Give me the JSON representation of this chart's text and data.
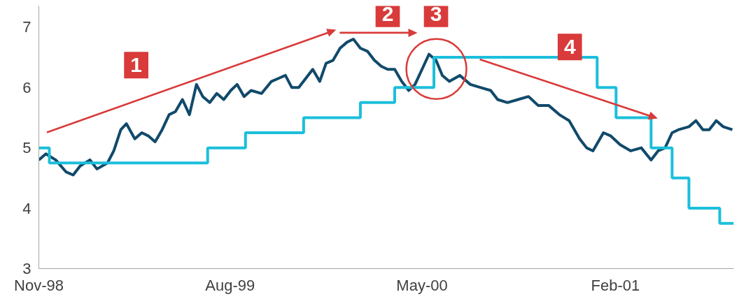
{
  "chart_data": {
    "type": "line",
    "xlim": [
      "1998-11-01",
      "2001-07-20"
    ],
    "ylim": [
      3,
      7.35
    ],
    "yticks": [
      3,
      4,
      5,
      6,
      7
    ],
    "xticks": [
      {
        "value": "1998-11-01",
        "label": "Nov-98"
      },
      {
        "value": "1999-08-01",
        "label": "Aug-99"
      },
      {
        "value": "2000-05-01",
        "label": "May-00"
      },
      {
        "value": "2001-02-01",
        "label": "Feb-01"
      }
    ],
    "grid": false,
    "line_style": "solid",
    "marker": "none",
    "series": [
      {
        "color": "#114a6b",
        "x": [
          "1998-11-01",
          "1998-11-11",
          "1998-11-25",
          "1998-12-10",
          "1998-12-20",
          "1998-12-30",
          "1999-01-13",
          "1999-01-23",
          "1999-02-07",
          "1999-02-16",
          "1999-02-26",
          "1999-03-06",
          "1999-03-18",
          "1999-03-28",
          "1999-04-06",
          "1999-04-16",
          "1999-04-26",
          "1999-05-06",
          "1999-05-15",
          "1999-05-25",
          "1999-06-04",
          "1999-06-14",
          "1999-06-23",
          "1999-07-03",
          "1999-07-13",
          "1999-07-23",
          "1999-08-02",
          "1999-08-11",
          "1999-08-21",
          "1999-08-31",
          "1999-09-15",
          "1999-09-29",
          "1999-10-09",
          "1999-10-19",
          "1999-10-28",
          "1999-11-07",
          "1999-11-17",
          "1999-11-27",
          "1999-12-07",
          "1999-12-16",
          "1999-12-26",
          "2000-01-05",
          "2000-01-15",
          "2000-01-24",
          "2000-02-03",
          "2000-02-13",
          "2000-02-23",
          "2000-03-04",
          "2000-03-13",
          "2000-03-23",
          "2000-04-02",
          "2000-04-12",
          "2000-04-21",
          "2000-05-01",
          "2000-05-11",
          "2000-05-21",
          "2000-05-30",
          "2000-06-09",
          "2000-06-24",
          "2000-07-09",
          "2000-07-23",
          "2000-08-07",
          "2000-08-17",
          "2000-08-31",
          "2000-09-15",
          "2000-09-30",
          "2000-10-14",
          "2000-10-29",
          "2000-11-13",
          "2000-11-27",
          "2000-12-12",
          "2000-12-22",
          "2000-12-31",
          "2001-01-15",
          "2001-01-25",
          "2001-02-08",
          "2001-02-23",
          "2001-03-10",
          "2001-03-24",
          "2001-04-03",
          "2001-04-13",
          "2001-04-23",
          "2001-05-02",
          "2001-05-17",
          "2001-05-27",
          "2001-06-06",
          "2001-06-15",
          "2001-06-25",
          "2001-07-05",
          "2001-07-18"
        ],
        "values": [
          4.8,
          4.9,
          4.8,
          4.6,
          4.55,
          4.7,
          4.8,
          4.65,
          4.75,
          4.95,
          5.3,
          5.4,
          5.15,
          5.25,
          5.2,
          5.1,
          5.3,
          5.55,
          5.6,
          5.8,
          5.55,
          6.05,
          5.85,
          5.75,
          5.9,
          5.8,
          5.95,
          6.05,
          5.85,
          5.95,
          5.9,
          6.1,
          6.15,
          6.2,
          6.0,
          6.0,
          6.15,
          6.3,
          6.1,
          6.4,
          6.45,
          6.65,
          6.75,
          6.8,
          6.65,
          6.6,
          6.45,
          6.35,
          6.3,
          6.3,
          6.1,
          5.95,
          6.05,
          6.3,
          6.55,
          6.45,
          6.2,
          6.1,
          6.2,
          6.05,
          6.0,
          5.95,
          5.8,
          5.75,
          5.8,
          5.85,
          5.7,
          5.7,
          5.55,
          5.45,
          5.15,
          5.0,
          4.95,
          5.25,
          5.2,
          5.05,
          4.95,
          5.0,
          4.8,
          4.95,
          5.0,
          5.25,
          5.3,
          5.35,
          5.45,
          5.3,
          5.3,
          5.45,
          5.35,
          5.3
        ]
      },
      {
        "type": "step",
        "color": "#1cbfdb",
        "x": [
          "1998-11-01",
          "1998-11-16",
          "1999-06-30",
          "1999-08-23",
          "1999-11-14",
          "2000-02-03",
          "2000-03-23",
          "2000-05-18",
          "2001-01-06",
          "2001-02-02",
          "2001-03-24",
          "2001-04-23",
          "2001-05-17",
          "2001-06-30",
          "2001-07-20"
        ],
        "values": [
          5.0,
          4.75,
          5.0,
          5.25,
          5.5,
          5.75,
          6.0,
          6.5,
          6.0,
          5.5,
          5.0,
          4.5,
          4.0,
          3.75,
          3.75
        ]
      }
    ],
    "annotations": [
      "1",
      "2",
      "3",
      "4"
    ]
  }
}
